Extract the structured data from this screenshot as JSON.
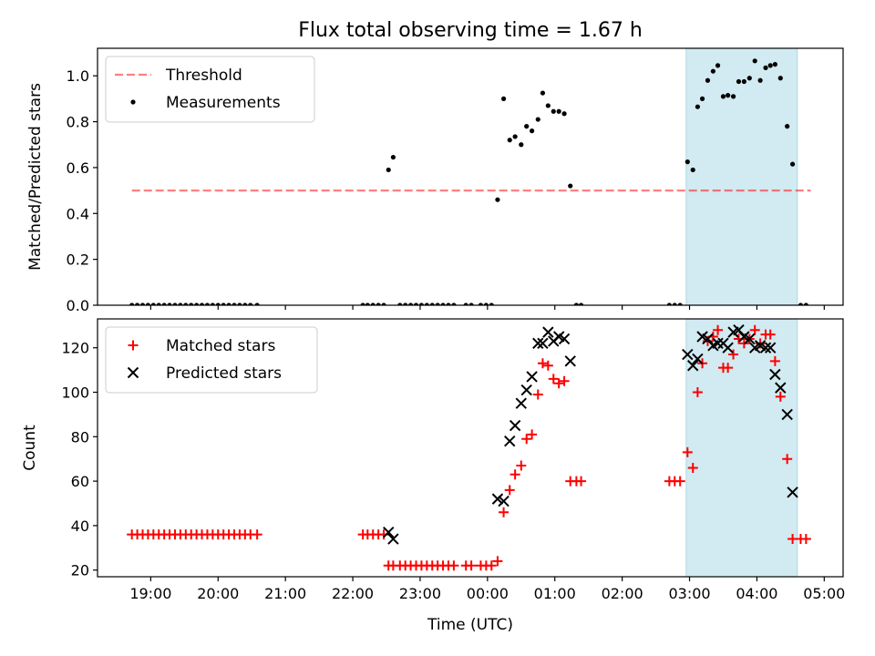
{
  "chart_data": {
    "title": "Flux total observing time = 1.67 h",
    "xlabel": "Time (UTC)",
    "x_unit": "hours (UTC, continuing past midnight as 24+)",
    "xlim": [
      18.21,
      29.28
    ],
    "x_ticks": [
      {
        "v": 19,
        "label": "19:00"
      },
      {
        "v": 20,
        "label": "20:00"
      },
      {
        "v": 21,
        "label": "21:00"
      },
      {
        "v": 22,
        "label": "22:00"
      },
      {
        "v": 23,
        "label": "23:00"
      },
      {
        "v": 24,
        "label": "00:00"
      },
      {
        "v": 25,
        "label": "01:00"
      },
      {
        "v": 26,
        "label": "02:00"
      },
      {
        "v": 27,
        "label": "03:00"
      },
      {
        "v": 28,
        "label": "04:00"
      },
      {
        "v": 29,
        "label": "05:00"
      }
    ],
    "shaded_span": {
      "x": [
        26.95,
        28.6
      ],
      "color": "#add8e6"
    },
    "panels": [
      {
        "type": "scatter",
        "ylabel": "Matched/Predicted stars",
        "ylim": [
          0,
          1.12
        ],
        "y_ticks": [
          0.0,
          0.2,
          0.4,
          0.6,
          0.8,
          1.0
        ],
        "y_tick_labels": [
          "0.0",
          "0.2",
          "0.4",
          "0.6",
          "0.8",
          "1.0"
        ],
        "legend_position": "top-left",
        "threshold": {
          "name": "Threshold",
          "value": 0.5,
          "x": [
            18.72,
            28.8
          ],
          "color": "#ff0000",
          "opacity": 0.5
        },
        "series": [
          {
            "name": "Measurements",
            "marker": "dot",
            "color": "#000000",
            "points": [
              [
                18.72,
                0
              ],
              [
                18.8,
                0
              ],
              [
                18.88,
                0
              ],
              [
                18.96,
                0
              ],
              [
                19.04,
                0
              ],
              [
                19.12,
                0
              ],
              [
                19.2,
                0
              ],
              [
                19.28,
                0
              ],
              [
                19.36,
                0
              ],
              [
                19.44,
                0
              ],
              [
                19.52,
                0
              ],
              [
                19.6,
                0
              ],
              [
                19.68,
                0
              ],
              [
                19.76,
                0
              ],
              [
                19.84,
                0
              ],
              [
                19.92,
                0
              ],
              [
                20.0,
                0
              ],
              [
                20.08,
                0
              ],
              [
                20.16,
                0
              ],
              [
                20.24,
                0
              ],
              [
                20.32,
                0
              ],
              [
                20.4,
                0
              ],
              [
                20.48,
                0
              ],
              [
                20.58,
                0
              ],
              [
                22.15,
                0
              ],
              [
                22.22,
                0
              ],
              [
                22.3,
                0
              ],
              [
                22.38,
                0
              ],
              [
                22.46,
                0
              ],
              [
                22.53,
                0.59
              ],
              [
                22.6,
                0.645
              ],
              [
                22.7,
                0
              ],
              [
                22.78,
                0
              ],
              [
                22.86,
                0
              ],
              [
                22.94,
                0
              ],
              [
                23.02,
                0
              ],
              [
                23.1,
                0
              ],
              [
                23.18,
                0
              ],
              [
                23.26,
                0
              ],
              [
                23.34,
                0
              ],
              [
                23.42,
                0
              ],
              [
                23.5,
                0
              ],
              [
                23.68,
                0
              ],
              [
                23.76,
                0
              ],
              [
                23.9,
                0
              ],
              [
                23.98,
                0
              ],
              [
                24.06,
                0
              ],
              [
                24.15,
                0.46
              ],
              [
                24.24,
                0.9
              ],
              [
                24.33,
                0.72
              ],
              [
                24.41,
                0.735
              ],
              [
                24.5,
                0.7
              ],
              [
                24.58,
                0.78
              ],
              [
                24.66,
                0.76
              ],
              [
                24.75,
                0.81
              ],
              [
                24.82,
                0.925
              ],
              [
                24.9,
                0.87
              ],
              [
                24.98,
                0.845
              ],
              [
                25.06,
                0.845
              ],
              [
                25.14,
                0.835
              ],
              [
                25.23,
                0.52
              ],
              [
                25.32,
                0
              ],
              [
                25.39,
                0
              ],
              [
                26.7,
                0
              ],
              [
                26.78,
                0
              ],
              [
                26.86,
                0
              ],
              [
                26.97,
                0.625
              ],
              [
                27.05,
                0.59
              ],
              [
                27.12,
                0.865
              ],
              [
                27.19,
                0.9
              ],
              [
                27.27,
                0.98
              ],
              [
                27.35,
                1.02
              ],
              [
                27.42,
                1.045
              ],
              [
                27.5,
                0.91
              ],
              [
                27.57,
                0.915
              ],
              [
                27.65,
                0.91
              ],
              [
                27.73,
                0.975
              ],
              [
                27.81,
                0.975
              ],
              [
                27.89,
                0.99
              ],
              [
                27.97,
                1.065
              ],
              [
                28.05,
                0.98
              ],
              [
                28.13,
                1.035
              ],
              [
                28.2,
                1.045
              ],
              [
                28.27,
                1.05
              ],
              [
                28.35,
                0.99
              ],
              [
                28.45,
                0.78
              ],
              [
                28.53,
                0.615
              ],
              [
                28.65,
                0
              ],
              [
                28.73,
                0
              ]
            ]
          }
        ]
      },
      {
        "type": "scatter",
        "ylabel": "Count",
        "ylim": [
          17,
          133
        ],
        "y_ticks": [
          20,
          40,
          60,
          80,
          100,
          120
        ],
        "y_tick_labels": [
          "20",
          "40",
          "60",
          "80",
          "100",
          "120"
        ],
        "legend_position": "top-left",
        "series": [
          {
            "name": "Matched stars",
            "marker": "plus",
            "color": "#ff0000",
            "points": [
              [
                18.72,
                36
              ],
              [
                18.8,
                36
              ],
              [
                18.88,
                36
              ],
              [
                18.96,
                36
              ],
              [
                19.04,
                36
              ],
              [
                19.12,
                36
              ],
              [
                19.2,
                36
              ],
              [
                19.28,
                36
              ],
              [
                19.36,
                36
              ],
              [
                19.44,
                36
              ],
              [
                19.52,
                36
              ],
              [
                19.6,
                36
              ],
              [
                19.68,
                36
              ],
              [
                19.76,
                36
              ],
              [
                19.84,
                36
              ],
              [
                19.92,
                36
              ],
              [
                20.0,
                36
              ],
              [
                20.08,
                36
              ],
              [
                20.16,
                36
              ],
              [
                20.24,
                36
              ],
              [
                20.32,
                36
              ],
              [
                20.4,
                36
              ],
              [
                20.48,
                36
              ],
              [
                20.58,
                36
              ],
              [
                22.15,
                36
              ],
              [
                22.22,
                36
              ],
              [
                22.3,
                36
              ],
              [
                22.38,
                36
              ],
              [
                22.46,
                36
              ],
              [
                22.53,
                22
              ],
              [
                22.6,
                22
              ],
              [
                22.7,
                22
              ],
              [
                22.78,
                22
              ],
              [
                22.86,
                22
              ],
              [
                22.94,
                22
              ],
              [
                23.02,
                22
              ],
              [
                23.1,
                22
              ],
              [
                23.18,
                22
              ],
              [
                23.26,
                22
              ],
              [
                23.34,
                22
              ],
              [
                23.42,
                22
              ],
              [
                23.5,
                22
              ],
              [
                23.68,
                22
              ],
              [
                23.76,
                22
              ],
              [
                23.9,
                22
              ],
              [
                23.98,
                22
              ],
              [
                24.06,
                22
              ],
              [
                24.15,
                24
              ],
              [
                24.24,
                46
              ],
              [
                24.33,
                56
              ],
              [
                24.41,
                63
              ],
              [
                24.5,
                67
              ],
              [
                24.58,
                79
              ],
              [
                24.66,
                81
              ],
              [
                24.75,
                99
              ],
              [
                24.82,
                113
              ],
              [
                24.9,
                112
              ],
              [
                24.98,
                106
              ],
              [
                25.06,
                104
              ],
              [
                25.14,
                105
              ],
              [
                25.23,
                60
              ],
              [
                25.32,
                60
              ],
              [
                25.39,
                60
              ],
              [
                26.7,
                60
              ],
              [
                26.78,
                60
              ],
              [
                26.86,
                60
              ],
              [
                26.97,
                73
              ],
              [
                27.05,
                66
              ],
              [
                27.12,
                100
              ],
              [
                27.19,
                113
              ],
              [
                27.27,
                123
              ],
              [
                27.35,
                125
              ],
              [
                27.42,
                128
              ],
              [
                27.5,
                111
              ],
              [
                27.57,
                111
              ],
              [
                27.65,
                117
              ],
              [
                27.73,
                124
              ],
              [
                27.81,
                122
              ],
              [
                27.89,
                124
              ],
              [
                27.97,
                128
              ],
              [
                28.05,
                122
              ],
              [
                28.13,
                126
              ],
              [
                28.2,
                126
              ],
              [
                28.27,
                114
              ],
              [
                28.35,
                98
              ],
              [
                28.45,
                70
              ],
              [
                28.53,
                34
              ],
              [
                28.65,
                34
              ],
              [
                28.73,
                34
              ]
            ]
          },
          {
            "name": "Predicted stars",
            "marker": "cross",
            "color": "#000000",
            "points": [
              [
                22.53,
                37
              ],
              [
                22.6,
                34
              ],
              [
                24.15,
                52
              ],
              [
                24.24,
                51
              ],
              [
                24.33,
                78
              ],
              [
                24.41,
                85
              ],
              [
                24.5,
                95
              ],
              [
                24.58,
                101
              ],
              [
                24.66,
                107
              ],
              [
                24.75,
                122
              ],
              [
                24.82,
                122
              ],
              [
                24.9,
                127
              ],
              [
                24.98,
                123
              ],
              [
                25.06,
                125
              ],
              [
                25.14,
                124
              ],
              [
                25.23,
                114
              ],
              [
                26.97,
                117
              ],
              [
                27.05,
                112
              ],
              [
                27.12,
                115
              ],
              [
                27.19,
                125
              ],
              [
                27.27,
                124
              ],
              [
                27.35,
                121
              ],
              [
                27.42,
                122
              ],
              [
                27.5,
                122
              ],
              [
                27.57,
                120
              ],
              [
                27.65,
                127
              ],
              [
                27.73,
                128
              ],
              [
                27.81,
                125
              ],
              [
                27.89,
                124
              ],
              [
                27.97,
                120
              ],
              [
                28.05,
                121
              ],
              [
                28.13,
                120
              ],
              [
                28.2,
                120
              ],
              [
                28.27,
                108
              ],
              [
                28.35,
                102
              ],
              [
                28.45,
                90
              ],
              [
                28.53,
                55
              ]
            ]
          }
        ]
      }
    ]
  }
}
